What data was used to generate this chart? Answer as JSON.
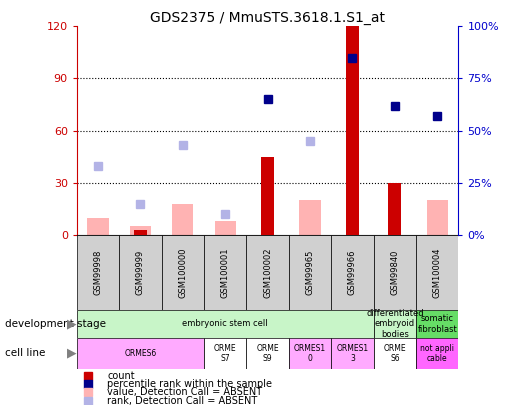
{
  "title": "GDS2375 / MmuSTS.3618.1.S1_at",
  "samples": [
    "GSM99998",
    "GSM99999",
    "GSM100000",
    "GSM100001",
    "GSM100002",
    "GSM99965",
    "GSM99966",
    "GSM99840",
    "GSM100004"
  ],
  "count_values": [
    0,
    3,
    0,
    0,
    45,
    0,
    120,
    30,
    0
  ],
  "percentile_rank": [
    null,
    null,
    null,
    null,
    65,
    null,
    85,
    62,
    57
  ],
  "value_absent": [
    10,
    5,
    18,
    8,
    null,
    20,
    null,
    null,
    20
  ],
  "rank_absent": [
    33,
    15,
    43,
    10,
    null,
    45,
    null,
    null,
    null
  ],
  "ylim_left": [
    0,
    120
  ],
  "ylim_right": [
    0,
    100
  ],
  "yticks_left": [
    0,
    30,
    60,
    90,
    120
  ],
  "ytick_labels_left": [
    "0",
    "30",
    "60",
    "90",
    "120"
  ],
  "yticks_right": [
    0,
    25,
    50,
    75,
    100
  ],
  "ytick_labels_right": [
    "0%",
    "25%",
    "50%",
    "75%",
    "100%"
  ],
  "dev_stage_groups": [
    {
      "label": "embryonic stem cell",
      "start": 0,
      "end": 7,
      "color": "#c8f5c8"
    },
    {
      "label": "differentiated\nembryoid\nbodies",
      "start": 7,
      "end": 8,
      "color": "#c8f5c8"
    },
    {
      "label": "somatic\nfibroblast",
      "start": 8,
      "end": 9,
      "color": "#66dd66"
    }
  ],
  "cell_line_groups": [
    {
      "label": "ORMES6",
      "start": 0,
      "end": 3,
      "color": "#ffaaff"
    },
    {
      "label": "ORME\nS7",
      "start": 3,
      "end": 4,
      "color": "#ffffff"
    },
    {
      "label": "ORME\nS9",
      "start": 4,
      "end": 5,
      "color": "#ffffff"
    },
    {
      "label": "ORMES1\n0",
      "start": 5,
      "end": 6,
      "color": "#ffaaff"
    },
    {
      "label": "ORMES1\n3",
      "start": 6,
      "end": 7,
      "color": "#ffaaff"
    },
    {
      "label": "ORME\nS6",
      "start": 7,
      "end": 8,
      "color": "#ffffff"
    },
    {
      "label": "not appli\ncable",
      "start": 8,
      "end": 9,
      "color": "#ff66ff"
    }
  ],
  "count_color": "#cc0000",
  "percentile_color": "#00008b",
  "value_absent_color": "#ffb3b3",
  "rank_absent_color": "#b3b3e6",
  "bg_color": "#ffffff"
}
